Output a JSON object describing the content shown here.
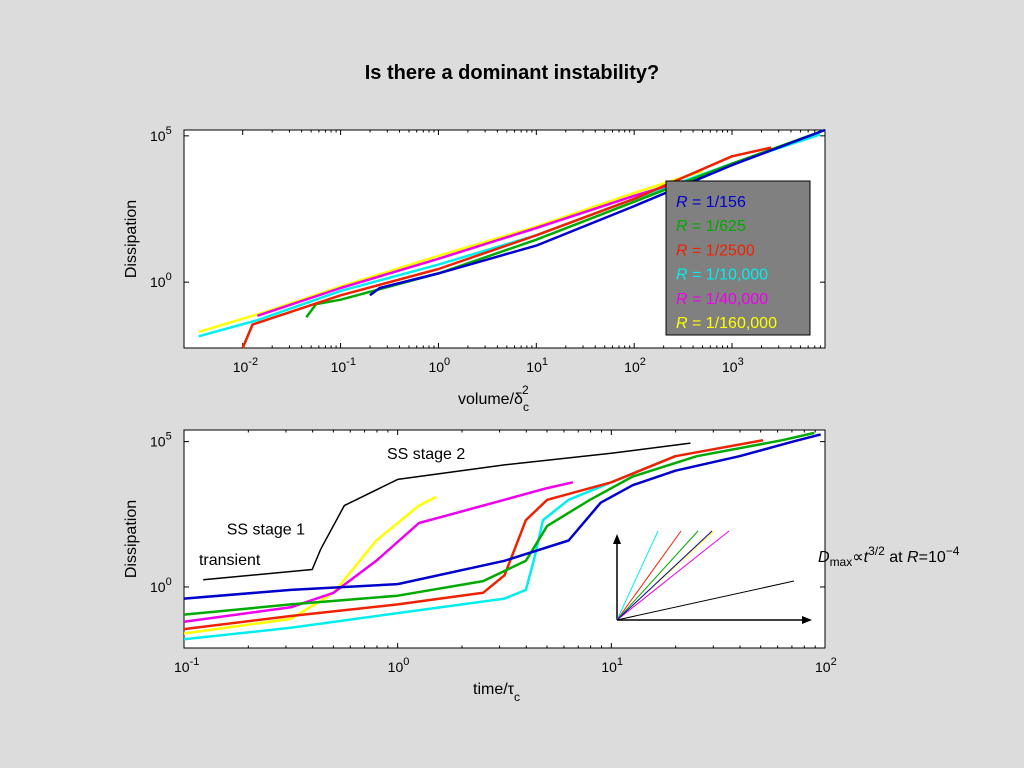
{
  "slide_title": "Is there a dominant instability?",
  "chart_data": [
    {
      "type": "line",
      "xlabel_base": "volume/δ",
      "xlabel_sub": "c",
      "xlabel_sup": "2",
      "ylabel": "Dissipation",
      "xscale": "log",
      "yscale": "log",
      "xlim_exp": [
        -2.6,
        3.95
      ],
      "ylim_exp": [
        -2.25,
        5.2
      ],
      "x_ticks": [
        {
          "base": "10",
          "exp": "-2",
          "value": -2
        },
        {
          "base": "10",
          "exp": "-1",
          "value": -1
        },
        {
          "base": "10",
          "exp": "0",
          "value": 0
        },
        {
          "base": "10",
          "exp": "1",
          "value": 1
        },
        {
          "base": "10",
          "exp": "2",
          "value": 2
        },
        {
          "base": "10",
          "exp": "3",
          "value": 3
        }
      ],
      "y_ticks": [
        {
          "base": "10",
          "exp": "5",
          "value": 5
        },
        {
          "base": "10",
          "exp": "0",
          "value": 0
        }
      ],
      "legend_position": "right",
      "legend": [
        {
          "var": "R",
          "text": " = 1/156",
          "color": "#0000cc"
        },
        {
          "var": "R",
          "text": " = 1/625",
          "color": "#00aa00"
        },
        {
          "var": "R",
          "text": " = 1/2500",
          "color": "#ee2200"
        },
        {
          "var": "R",
          "text": " = 1/10,000",
          "color": "#00eeee"
        },
        {
          "var": "R",
          "text": " = 1/40,000",
          "color": "#ee00ee"
        },
        {
          "var": "R",
          "text": " = 1/160,000",
          "color": "#ffff00"
        }
      ],
      "series": [
        {
          "color": "#ffff00",
          "points": [
            [
              -2.45,
              -1.7
            ],
            [
              -1.8,
              -1.05
            ],
            [
              -1,
              -0.15
            ],
            [
              0,
              0.9
            ],
            [
              1,
              1.9
            ],
            [
              2,
              3.05
            ],
            [
              2.7,
              3.8
            ]
          ]
        },
        {
          "color": "#00eeee",
          "points": [
            [
              -2.45,
              -1.85
            ],
            [
              -1.85,
              -1.3
            ],
            [
              -1,
              -0.3
            ],
            [
              0,
              0.6
            ],
            [
              1,
              1.6
            ],
            [
              2,
              2.85
            ],
            [
              3,
              4.05
            ],
            [
              3.9,
              5.05
            ]
          ]
        },
        {
          "color": "#ee00ee",
          "points": [
            [
              -1.85,
              -1.15
            ],
            [
              -1,
              -0.2
            ],
            [
              0,
              0.8
            ],
            [
              1,
              1.85
            ],
            [
              2,
              2.95
            ],
            [
              2.5,
              3.45
            ]
          ]
        },
        {
          "color": "#00aa00",
          "points": [
            [
              -1.35,
              -1.2
            ],
            [
              -1.25,
              -0.75
            ],
            [
              -1,
              -0.6
            ],
            [
              0,
              0.3
            ],
            [
              1,
              1.45
            ],
            [
              2,
              2.75
            ],
            [
              3,
              4.05
            ],
            [
              3.95,
              5.2
            ]
          ]
        },
        {
          "color": "#ee2200",
          "points": [
            [
              -2.0,
              -2.25
            ],
            [
              -1.9,
              -1.45
            ],
            [
              -1,
              -0.45
            ],
            [
              0,
              0.45
            ],
            [
              1,
              1.6
            ],
            [
              2,
              2.85
            ],
            [
              3,
              4.3
            ],
            [
              3.4,
              4.6
            ]
          ]
        },
        {
          "color": "#0000cc",
          "points": [
            [
              -0.7,
              -0.45
            ],
            [
              -0.6,
              -0.2
            ],
            [
              0,
              0.3
            ],
            [
              1,
              1.25
            ],
            [
              2,
              2.6
            ],
            [
              3,
              4.0
            ],
            [
              3.95,
              5.2
            ]
          ]
        }
      ]
    },
    {
      "type": "line",
      "xlabel_base": "time/τ",
      "xlabel_sub": "c",
      "ylabel": "Dissipation",
      "xscale": "log",
      "yscale": "log",
      "xlim_exp": [
        -1,
        2
      ],
      "ylim_exp": [
        -2.1,
        5.4
      ],
      "x_ticks": [
        {
          "base": "10",
          "exp": "-1",
          "value": -1
        },
        {
          "base": "10",
          "exp": "0",
          "value": 0
        },
        {
          "base": "10",
          "exp": "1",
          "value": 1
        },
        {
          "base": "10",
          "exp": "2",
          "value": 2
        }
      ],
      "y_ticks": [
        {
          "base": "10",
          "exp": "5",
          "value": 5
        },
        {
          "base": "10",
          "exp": "0",
          "value": 0
        }
      ],
      "annotations": [
        {
          "text": "SS stage 2",
          "x": -0.05,
          "y": 4.4
        },
        {
          "text": "SS stage 1",
          "x": -0.8,
          "y": 1.8
        },
        {
          "text": "transient",
          "x": -0.93,
          "y": 0.75
        }
      ],
      "stage_curve": [
        [
          -0.91,
          0.25
        ],
        [
          -0.4,
          0.6
        ],
        [
          -0.36,
          1.3
        ],
        [
          -0.25,
          2.8
        ],
        [
          0,
          3.7
        ],
        [
          0.5,
          4.2
        ],
        [
          1.0,
          4.6
        ],
        [
          1.37,
          4.95
        ]
      ],
      "formula": {
        "D": "D",
        "sub": "max",
        "prop": "∝",
        "t": "t",
        "sup": "3/2",
        "at": " at ",
        "R": "R",
        "eq": "=10",
        "exp": "−4"
      },
      "series": [
        {
          "color": "#00eeee",
          "points": [
            [
              -1,
              -1.8
            ],
            [
              -0.5,
              -1.4
            ],
            [
              0,
              -0.9
            ],
            [
              0.5,
              -0.4
            ],
            [
              0.6,
              -0.1
            ],
            [
              0.64,
              1.0
            ],
            [
              0.68,
              2.3
            ],
            [
              0.8,
              3.0
            ],
            [
              1,
              3.6
            ],
            [
              1.3,
              4.5
            ]
          ]
        },
        {
          "color": "#ffff00",
          "points": [
            [
              -1,
              -1.6
            ],
            [
              -0.5,
              -1.1
            ],
            [
              -0.3,
              -0.2
            ],
            [
              -0.1,
              1.6
            ],
            [
              0.1,
              2.8
            ],
            [
              0.18,
              3.1
            ]
          ]
        },
        {
          "color": "#ee00ee",
          "points": [
            [
              -1,
              -1.2
            ],
            [
              -0.5,
              -0.7
            ],
            [
              -0.3,
              -0.2
            ],
            [
              -0.1,
              0.9
            ],
            [
              0.1,
              2.2
            ],
            [
              0.3,
              2.6
            ],
            [
              0.7,
              3.4
            ],
            [
              0.82,
              3.6
            ]
          ]
        },
        {
          "color": "#ee2200",
          "points": [
            [
              -1,
              -1.45
            ],
            [
              -0.5,
              -1.0
            ],
            [
              0,
              -0.6
            ],
            [
              0.4,
              -0.2
            ],
            [
              0.5,
              0.4
            ],
            [
              0.6,
              2.3
            ],
            [
              0.7,
              3.0
            ],
            [
              1,
              3.6
            ],
            [
              1.3,
              4.5
            ],
            [
              1.71,
              5.05
            ]
          ]
        },
        {
          "color": "#00aa00",
          "points": [
            [
              -1,
              -0.95
            ],
            [
              -0.5,
              -0.6
            ],
            [
              0,
              -0.3
            ],
            [
              0.4,
              0.2
            ],
            [
              0.6,
              0.9
            ],
            [
              0.7,
              2.1
            ],
            [
              0.9,
              3.0
            ],
            [
              1.1,
              3.8
            ],
            [
              1.4,
              4.5
            ],
            [
              1.8,
              5.05
            ],
            [
              1.95,
              5.3
            ]
          ]
        },
        {
          "color": "#0000cc",
          "points": [
            [
              -1,
              -0.4
            ],
            [
              -0.5,
              -0.1
            ],
            [
              0,
              0.1
            ],
            [
              0.5,
              0.9
            ],
            [
              0.8,
              1.6
            ],
            [
              0.95,
              2.9
            ],
            [
              1.1,
              3.5
            ],
            [
              1.3,
              4.0
            ],
            [
              1.6,
              4.5
            ],
            [
              1.85,
              5.0
            ],
            [
              1.98,
              5.25
            ]
          ]
        }
      ]
    }
  ]
}
